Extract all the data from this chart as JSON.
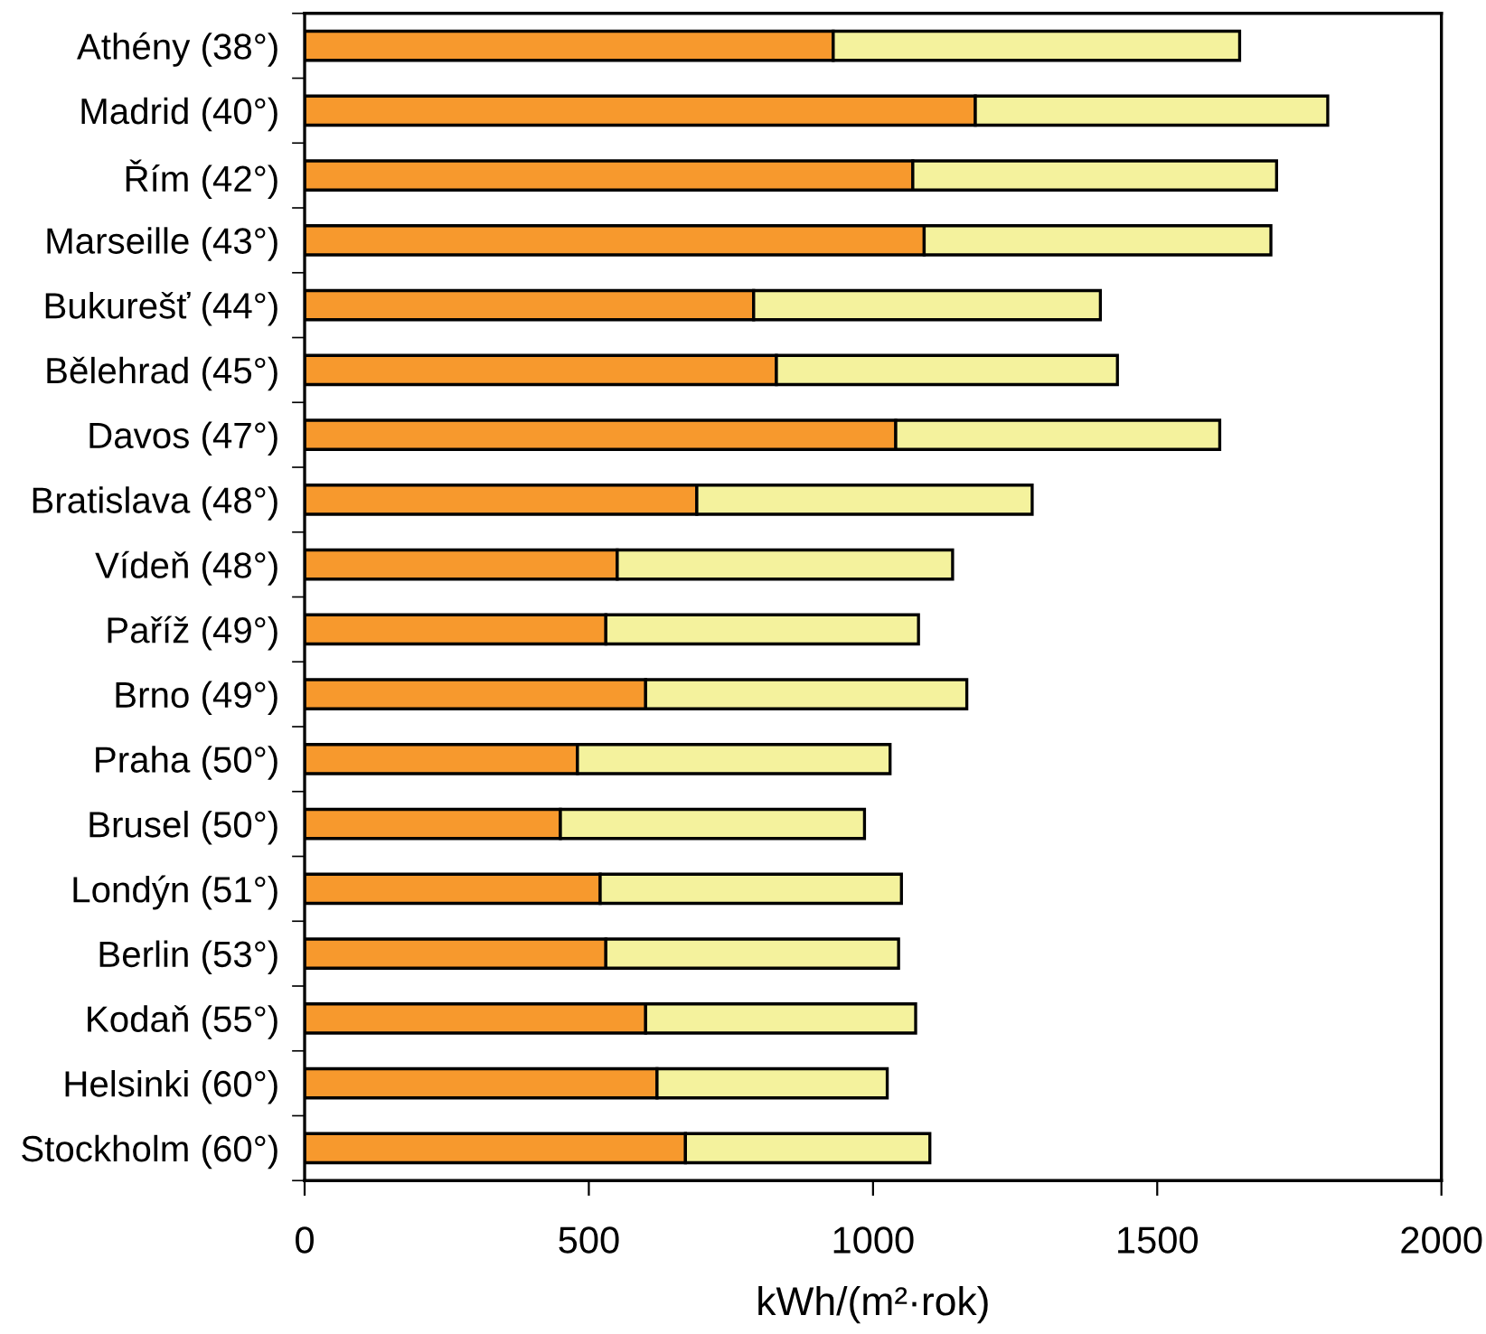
{
  "chart_data": {
    "type": "bar",
    "orientation": "horizontal",
    "stacked": true,
    "xlabel": "kWh/(m²·rok)",
    "categories": [
      "Athény (38°)",
      "Madrid (40°)",
      "Řím (42°)",
      "Marseille (43°)",
      "Bukurešť (44°)",
      "Bělehrad (45°)",
      "Davos (47°)",
      "Bratislava (48°)",
      "Vídeň (48°)",
      "Paříž (49°)",
      "Brno (49°)",
      "Praha (50°)",
      "Brusel (50°)",
      "Londýn (51°)",
      "Berlin (53°)",
      "Kodaň (55°)",
      "Helsinki (60°)",
      "Stockholm (60°)"
    ],
    "series": [
      {
        "color": "#f7992d",
        "values": [
          930,
          1180,
          1070,
          1090,
          790,
          830,
          1040,
          690,
          550,
          530,
          600,
          480,
          450,
          520,
          530,
          600,
          620,
          670
        ]
      },
      {
        "color": "#f4f29d",
        "values": [
          715,
          620,
          640,
          610,
          610,
          600,
          570,
          590,
          590,
          550,
          565,
          550,
          535,
          530,
          515,
          475,
          405,
          430
        ]
      }
    ],
    "xlim": [
      0,
      2000
    ],
    "xticks": [
      0,
      500,
      1000,
      1500,
      2000
    ],
    "grid": false,
    "legend": false
  }
}
